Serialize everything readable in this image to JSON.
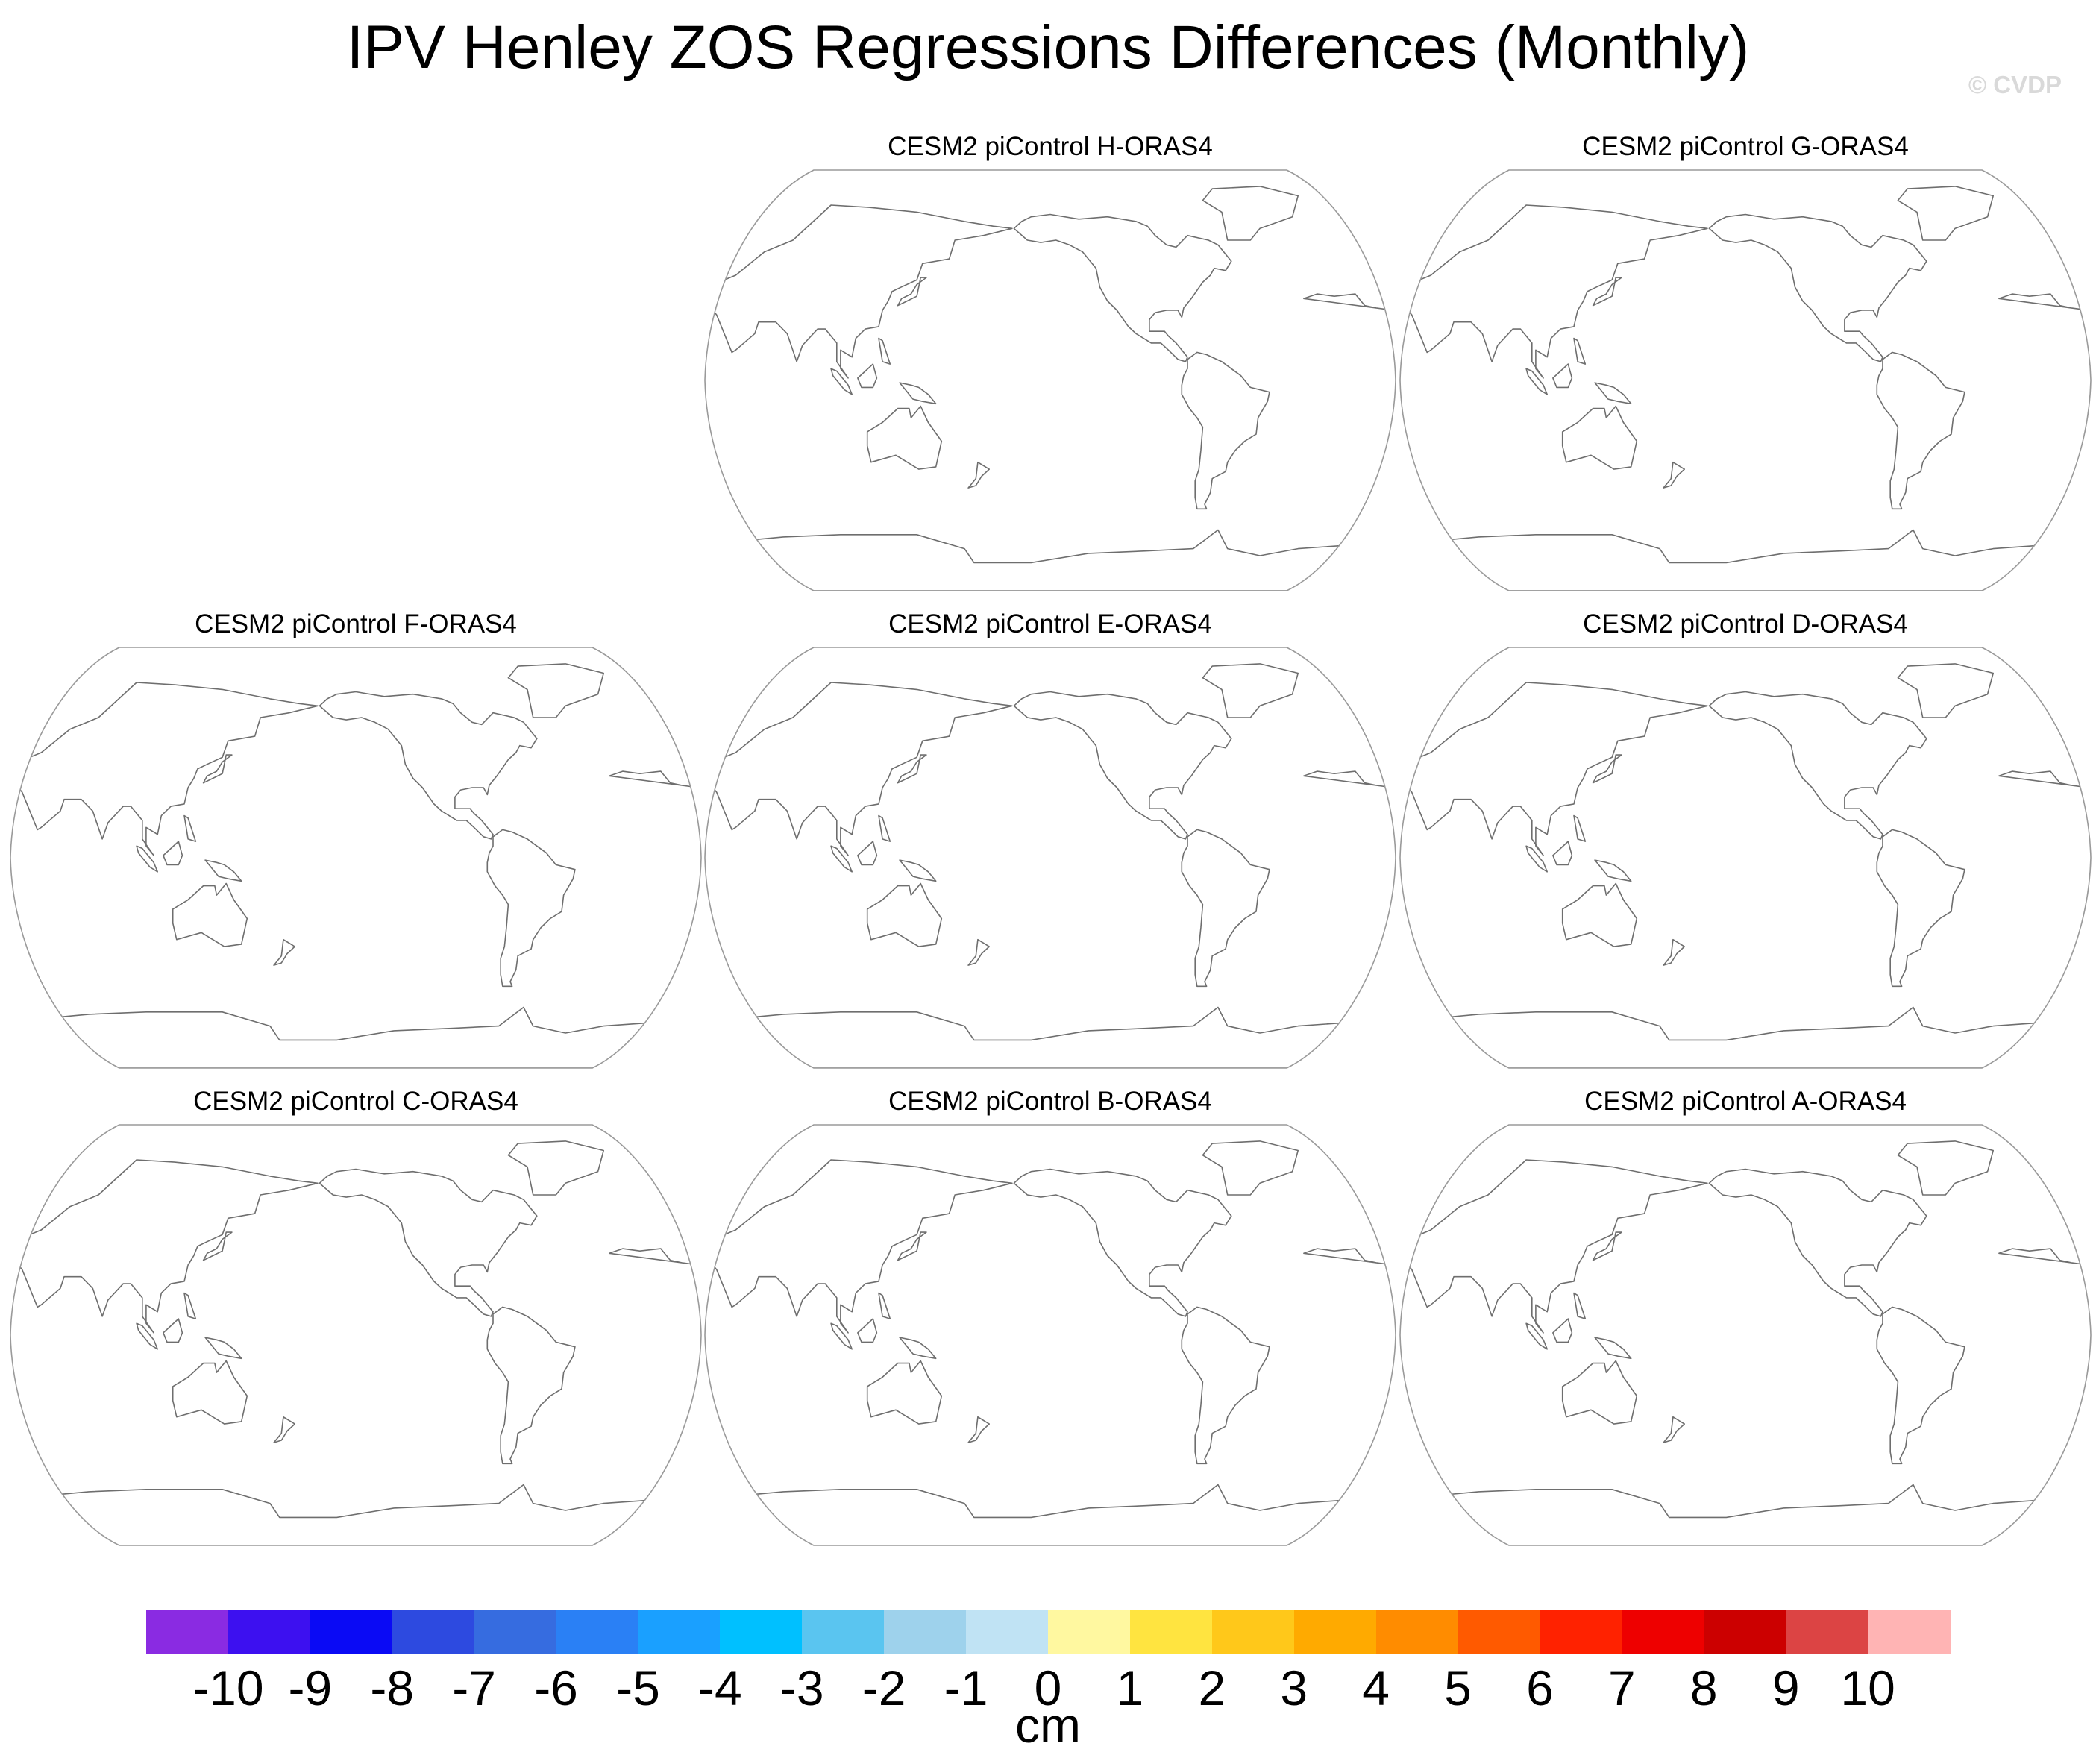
{
  "title": "IPV Henley ZOS Regressions Differences (Monthly)",
  "watermark": "© CVDP",
  "panels": [
    {
      "id": "H",
      "label": "CESM2 piControl H-ORAS4"
    },
    {
      "id": "G",
      "label": "CESM2 piControl G-ORAS4"
    },
    {
      "id": "F",
      "label": "CESM2 piControl F-ORAS4"
    },
    {
      "id": "E",
      "label": "CESM2 piControl E-ORAS4"
    },
    {
      "id": "D",
      "label": "CESM2 piControl D-ORAS4"
    },
    {
      "id": "C",
      "label": "CESM2 piControl C-ORAS4"
    },
    {
      "id": "B",
      "label": "CESM2 piControl B-ORAS4"
    },
    {
      "id": "A",
      "label": "CESM2 piControl A-ORAS4"
    }
  ],
  "colorbar": {
    "units": "cm",
    "labels": [
      "-10",
      "-9",
      "-8",
      "-7",
      "-6",
      "-5",
      "-4",
      "-3",
      "-2",
      "-1",
      "0",
      "1",
      "2",
      "3",
      "4",
      "5",
      "6",
      "7",
      "8",
      "9",
      "10"
    ],
    "colors": [
      "#8a2be2",
      "#3d10f0",
      "#0a0af5",
      "#2d4ae0",
      "#366ce0",
      "#2a80f5",
      "#1aa0ff",
      "#00c0ff",
      "#5ac5f0",
      "#9ed2ec",
      "#c0e3f4",
      "#fff8a0",
      "#ffe440",
      "#ffc81a",
      "#ffaa00",
      "#ff8c00",
      "#ff5a00",
      "#ff2200",
      "#ee0000",
      "#cc0000",
      "#dc4444",
      "#ffb4b4"
    ]
  }
}
